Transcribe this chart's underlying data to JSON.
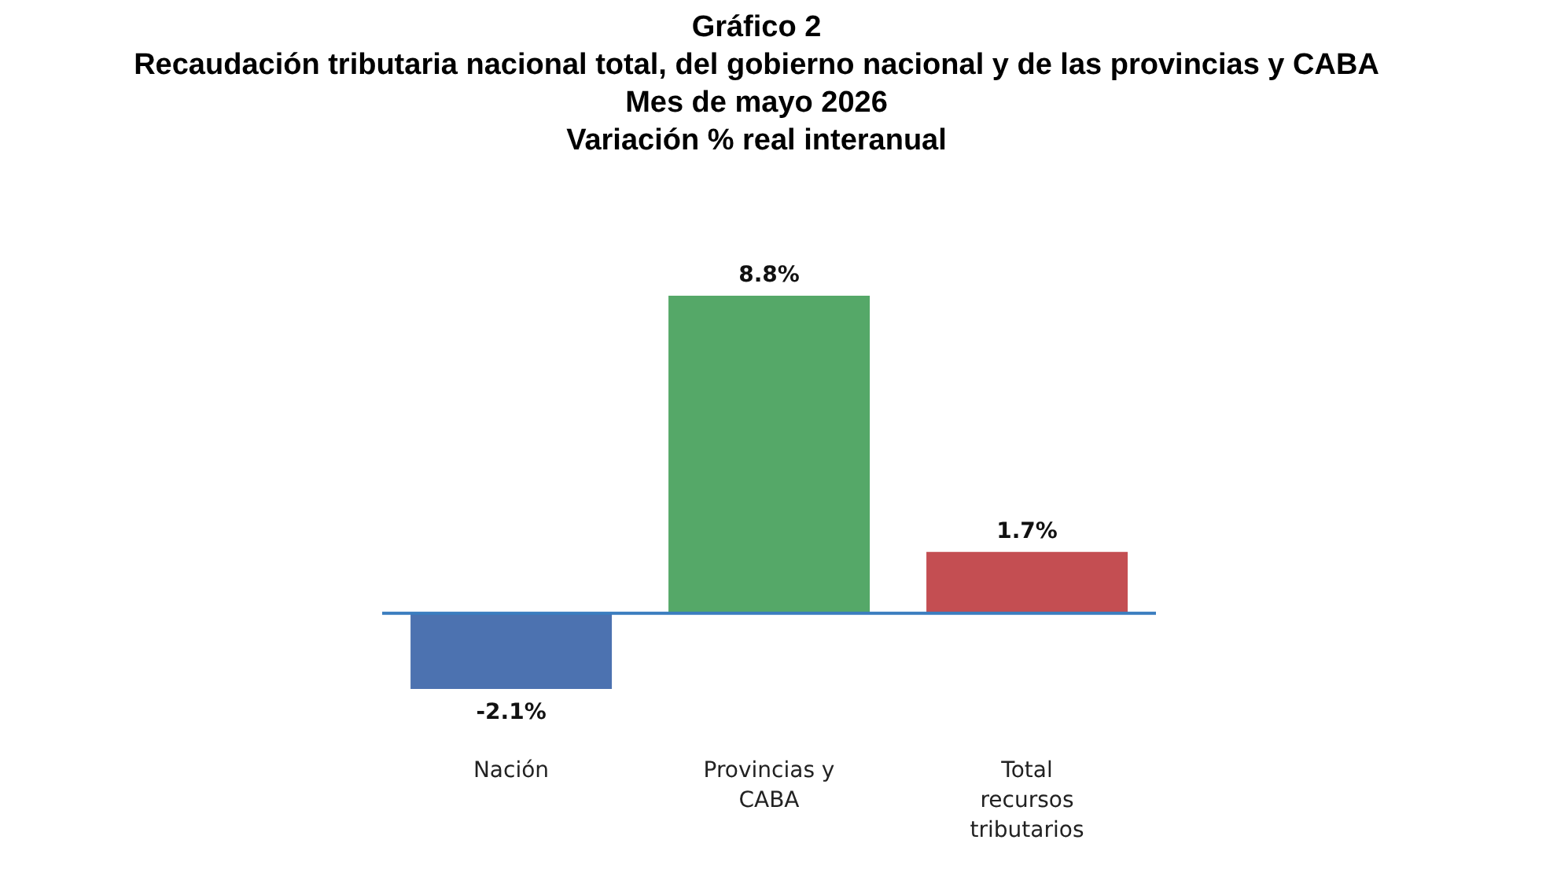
{
  "chart_data": {
    "type": "bar",
    "title": "Gráfico 2",
    "subtitle": "Recaudación tributaria nacional total, del gobierno nacional y de las provincias y CABA\nMes de mayo 2026\nVariación % real interanual",
    "categories": [
      "Nación",
      "Provincias y CABA",
      "Total recursos tributarios"
    ],
    "values": [
      -2.1,
      8.8,
      1.7
    ],
    "colors": [
      "#4c72b0",
      "#55a868",
      "#c44e52"
    ],
    "value_labels": [
      "-2.1%",
      "8.8%",
      "1.7%"
    ],
    "ref_lines": [
      {
        "axis": "y",
        "value": 0,
        "color": "#3a7dbf"
      }
    ]
  }
}
